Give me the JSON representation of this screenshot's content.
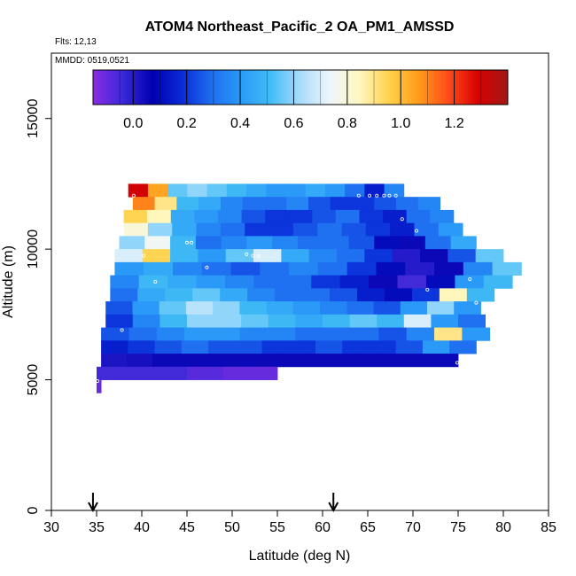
{
  "chart_data": {
    "type": "heatmap",
    "title": "ATOM4 Northeast_Pacific_2 OA_PM1_AMSSD",
    "annotations": [
      "Flts: 12,13",
      "MMDD: 0519,0521"
    ],
    "xlabel": "Latitude (deg N)",
    "ylabel": "Altitude (m)",
    "xlim": [
      30,
      85
    ],
    "ylim": [
      0,
      17500
    ],
    "x_ticks": [
      "30",
      "35",
      "40",
      "45",
      "50",
      "55",
      "60",
      "65",
      "70",
      "75",
      "80",
      "85"
    ],
    "y_ticks": [
      "0",
      "5000",
      "10000",
      "15000"
    ],
    "colorbar": {
      "range": [
        -0.15,
        1.4
      ],
      "ticks": [
        "0.0",
        "0.2",
        "0.4",
        "0.6",
        "0.8",
        "1.0",
        "1.2"
      ],
      "stops": [
        "#8a2be2",
        "#3a2ad8",
        "#0000b0",
        "#0a2ad8",
        "#1e6ef0",
        "#2a9af8",
        "#41bdf5",
        "#a9dcfb",
        "#eef6fb",
        "#fff7c0",
        "#ffd24a",
        "#ff9b1a",
        "#ff4a1a",
        "#d80000",
        "#a01818"
      ]
    },
    "arrow_markers_lat": [
      34.6,
      61.2
    ],
    "bands": [
      {
        "alt": 12250,
        "lat0": 38.5,
        "lat1": 69.0,
        "vals": [
          1.3,
          1.05,
          0.55,
          0.6,
          0.55,
          0.5,
          0.45,
          0.4,
          0.4,
          0.45,
          0.4,
          0.3,
          0.15,
          0.35
        ]
      },
      {
        "alt": 11750,
        "lat0": 39.0,
        "lat1": 73.0,
        "vals": [
          1.1,
          0.9,
          0.5,
          0.45,
          0.35,
          0.3,
          0.3,
          0.35,
          0.25,
          0.2,
          0.2,
          0.25,
          0.3,
          0.35
        ]
      },
      {
        "alt": 11250,
        "lat0": 38.0,
        "lat1": 74.5,
        "vals": [
          0.95,
          0.85,
          0.45,
          0.4,
          0.35,
          0.25,
          0.2,
          0.2,
          0.25,
          0.3,
          0.2,
          0.15,
          0.3,
          0.35
        ]
      },
      {
        "alt": 10750,
        "lat0": 38.0,
        "lat1": 75.5,
        "vals": [
          0.8,
          0.6,
          0.45,
          0.35,
          0.3,
          0.2,
          0.2,
          0.25,
          0.3,
          0.25,
          0.2,
          0.15,
          0.3,
          0.4
        ]
      },
      {
        "alt": 10250,
        "lat0": 37.5,
        "lat1": 77.0,
        "vals": [
          0.6,
          0.75,
          0.5,
          0.3,
          0.35,
          0.4,
          0.35,
          0.3,
          0.3,
          0.25,
          0.1,
          0.05,
          0.3,
          0.45
        ]
      },
      {
        "alt": 9750,
        "lat0": 37.0,
        "lat1": 80.0,
        "vals": [
          0.7,
          0.95,
          0.5,
          0.4,
          0.55,
          0.7,
          0.45,
          0.35,
          0.3,
          0.2,
          0.0,
          0.05,
          0.25,
          0.55
        ]
      },
      {
        "alt": 9250,
        "lat0": 37.0,
        "lat1": 82.0,
        "vals": [
          0.4,
          0.45,
          0.35,
          0.3,
          0.25,
          0.3,
          0.35,
          0.3,
          0.2,
          0.1,
          0.0,
          0.05,
          0.35,
          0.55
        ]
      },
      {
        "alt": 8750,
        "lat0": 36.5,
        "lat1": 81.0,
        "vals": [
          0.35,
          0.5,
          0.45,
          0.4,
          0.35,
          0.3,
          0.3,
          0.2,
          0.15,
          0.05,
          -0.05,
          0.1,
          0.4,
          0.5
        ]
      },
      {
        "alt": 8250,
        "lat0": 36.5,
        "lat1": 79.0,
        "vals": [
          0.3,
          0.45,
          0.5,
          0.55,
          0.45,
          0.35,
          0.3,
          0.3,
          0.25,
          0.15,
          0.1,
          0.2,
          0.85,
          0.5
        ]
      },
      {
        "alt": 7750,
        "lat0": 36.0,
        "lat1": 77.5,
        "vals": [
          0.25,
          0.4,
          0.55,
          0.65,
          0.6,
          0.5,
          0.45,
          0.4,
          0.35,
          0.3,
          0.25,
          0.4,
          0.6,
          0.4
        ]
      },
      {
        "alt": 7250,
        "lat0": 36.0,
        "lat1": 78.0,
        "vals": [
          0.2,
          0.35,
          0.5,
          0.6,
          0.6,
          0.55,
          0.5,
          0.45,
          0.5,
          0.55,
          0.5,
          0.7,
          0.4,
          0.3
        ]
      },
      {
        "alt": 6750,
        "lat0": 35.5,
        "lat1": 78.5,
        "vals": [
          0.25,
          0.3,
          0.35,
          0.4,
          0.4,
          0.35,
          0.35,
          0.3,
          0.3,
          0.3,
          0.25,
          0.35,
          0.9,
          0.4
        ]
      },
      {
        "alt": 6250,
        "lat0": 35.5,
        "lat1": 77.0,
        "vals": [
          0.15,
          0.2,
          0.25,
          0.3,
          0.25,
          0.25,
          0.2,
          0.2,
          0.25,
          0.2,
          0.2,
          0.25,
          0.4,
          0.3
        ]
      },
      {
        "alt": 5750,
        "lat0": 35.5,
        "lat1": 75.0,
        "vals": [
          0.02,
          0.03,
          0.05,
          0.05,
          0.05,
          0.05,
          0.05,
          0.05,
          0.05,
          0.05,
          0.05,
          0.05,
          0.05,
          0.05
        ]
      },
      {
        "alt": 5250,
        "lat0": 35.0,
        "lat1": 55.0,
        "vals": [
          -0.05,
          -0.05,
          -0.05,
          -0.05,
          -0.05,
          -0.08,
          -0.08,
          -0.1,
          -0.1,
          -0.1
        ]
      },
      {
        "alt": 4750,
        "lat0": 35.0,
        "lat1": 35.5,
        "vals": [
          -0.1
        ]
      }
    ],
    "points": [
      {
        "lat": 38.2,
        "alt": 12100
      },
      {
        "lat": 39.1,
        "alt": 12050
      },
      {
        "lat": 64.0,
        "alt": 12050
      },
      {
        "lat": 65.2,
        "alt": 12050
      },
      {
        "lat": 66.0,
        "alt": 12050
      },
      {
        "lat": 66.8,
        "alt": 12050
      },
      {
        "lat": 67.4,
        "alt": 12050
      },
      {
        "lat": 68.1,
        "alt": 12050
      },
      {
        "lat": 68.8,
        "alt": 11150
      },
      {
        "lat": 70.4,
        "alt": 10700
      },
      {
        "lat": 45.0,
        "alt": 10250
      },
      {
        "lat": 45.5,
        "alt": 10250
      },
      {
        "lat": 51.6,
        "alt": 9800
      },
      {
        "lat": 52.3,
        "alt": 9750
      },
      {
        "lat": 52.9,
        "alt": 9750
      },
      {
        "lat": 40.2,
        "alt": 9750
      },
      {
        "lat": 47.2,
        "alt": 9300
      },
      {
        "lat": 41.5,
        "alt": 8750
      },
      {
        "lat": 71.6,
        "alt": 8450
      },
      {
        "lat": 76.3,
        "alt": 8850
      },
      {
        "lat": 77.0,
        "alt": 7950
      },
      {
        "lat": 37.8,
        "alt": 6900
      },
      {
        "lat": 77.6,
        "alt": 6300
      },
      {
        "lat": 74.9,
        "alt": 5650
      },
      {
        "lat": 35.1,
        "alt": 4950
      }
    ]
  }
}
